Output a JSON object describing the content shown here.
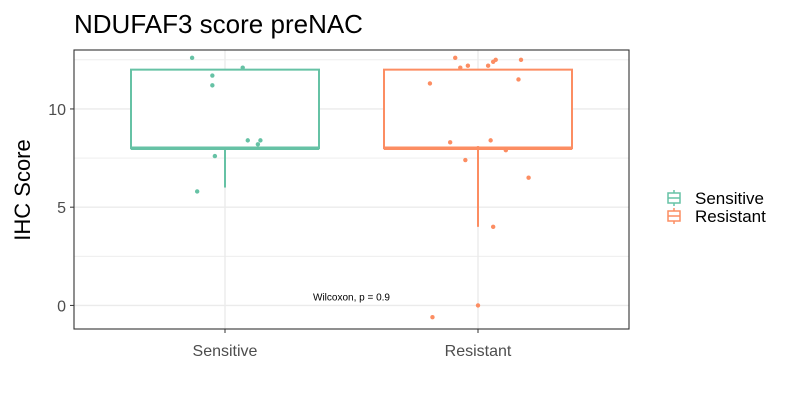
{
  "colors": {
    "Sensitive": "#66c2a5",
    "Resistant": "#fc8d62",
    "grid": "#ebebeb",
    "panel_border": "#333333"
  },
  "chart_data": {
    "type": "box",
    "title": "NDUFAF3 score preNAC",
    "xlabel": "",
    "ylabel": "IHC Score",
    "categories": [
      "Sensitive",
      "Resistant"
    ],
    "ylim": [
      -1.2,
      13.0
    ],
    "yticks": [
      0,
      5,
      10
    ],
    "grid": true,
    "legend_position": "right",
    "legend": [
      "Sensitive",
      "Resistant"
    ],
    "boxes": [
      {
        "group": "Sensitive",
        "min": 6,
        "q1": 8,
        "median": 8,
        "q3": 12,
        "max": 12
      },
      {
        "group": "Resistant",
        "min": 4,
        "q1": 8,
        "median": 8,
        "q3": 12,
        "max": 12
      }
    ],
    "points": [
      {
        "group": "Sensitive",
        "jitter": -0.13,
        "y": 12.6
      },
      {
        "group": "Sensitive",
        "jitter": -0.05,
        "y": 11.7
      },
      {
        "group": "Sensitive",
        "jitter": -0.05,
        "y": 11.2
      },
      {
        "group": "Sensitive",
        "jitter": 0.07,
        "y": 12.1
      },
      {
        "group": "Sensitive",
        "jitter": 0.09,
        "y": 8.4
      },
      {
        "group": "Sensitive",
        "jitter": 0.14,
        "y": 8.4
      },
      {
        "group": "Sensitive",
        "jitter": 0.13,
        "y": 8.2
      },
      {
        "group": "Sensitive",
        "jitter": -0.04,
        "y": 7.6
      },
      {
        "group": "Sensitive",
        "jitter": -0.11,
        "y": 5.8
      },
      {
        "group": "Resistant",
        "jitter": -0.09,
        "y": 12.6
      },
      {
        "group": "Resistant",
        "jitter": -0.07,
        "y": 12.1
      },
      {
        "group": "Resistant",
        "jitter": -0.04,
        "y": 12.2
      },
      {
        "group": "Resistant",
        "jitter": 0.04,
        "y": 12.2
      },
      {
        "group": "Resistant",
        "jitter": 0.07,
        "y": 12.5
      },
      {
        "group": "Resistant",
        "jitter": 0.06,
        "y": 12.4
      },
      {
        "group": "Resistant",
        "jitter": 0.17,
        "y": 12.5
      },
      {
        "group": "Resistant",
        "jitter": 0.16,
        "y": 11.5
      },
      {
        "group": "Resistant",
        "jitter": -0.19,
        "y": 11.3
      },
      {
        "group": "Resistant",
        "jitter": -0.11,
        "y": 8.3
      },
      {
        "group": "Resistant",
        "jitter": 0.05,
        "y": 8.4
      },
      {
        "group": "Resistant",
        "jitter": 0.0,
        "y": 8.0
      },
      {
        "group": "Resistant",
        "jitter": 0.11,
        "y": 7.9
      },
      {
        "group": "Resistant",
        "jitter": -0.05,
        "y": 7.4
      },
      {
        "group": "Resistant",
        "jitter": 0.2,
        "y": 6.5
      },
      {
        "group": "Resistant",
        "jitter": 0.06,
        "y": 4.0
      },
      {
        "group": "Resistant",
        "jitter": 0.0,
        "y": 0.0
      },
      {
        "group": "Resistant",
        "jitter": -0.18,
        "y": -0.6
      }
    ],
    "annotation": {
      "text": "Wilcoxon, p = 0.9",
      "x": 1.5,
      "y": 0.25
    }
  }
}
